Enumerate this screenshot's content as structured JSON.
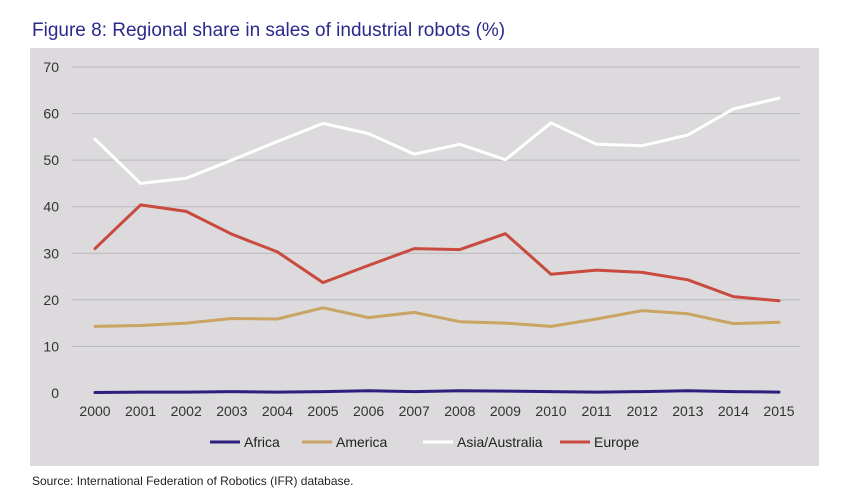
{
  "figure": {
    "title": "Figure 8: Regional share in sales of industrial robots (%)",
    "source": "Source: International Federation of Robotics (IFR) database."
  },
  "chart_data": {
    "type": "line",
    "title": "Figure 8: Regional share in sales of industrial robots (%)",
    "xlabel": "",
    "ylabel": "",
    "ylim": [
      0,
      70
    ],
    "yticks": [
      0,
      10,
      20,
      30,
      40,
      50,
      60,
      70
    ],
    "grid": true,
    "legend_position": "bottom",
    "categories": [
      "2000",
      "2001",
      "2002",
      "2003",
      "2004",
      "2005",
      "2006",
      "2007",
      "2008",
      "2009",
      "2010",
      "2011",
      "2012",
      "2013",
      "2014",
      "2015"
    ],
    "series": [
      {
        "name": "Africa",
        "color": "#2e1f7e",
        "values": [
          0.1,
          0.2,
          0.2,
          0.3,
          0.2,
          0.3,
          0.5,
          0.3,
          0.5,
          0.4,
          0.3,
          0.2,
          0.3,
          0.5,
          0.3,
          0.2
        ]
      },
      {
        "name": "America",
        "color": "#c9a462",
        "values": [
          14.3,
          14.5,
          15.0,
          16.0,
          15.9,
          18.3,
          16.2,
          17.3,
          15.3,
          15.0,
          14.3,
          15.9,
          17.7,
          17.0,
          14.9,
          15.2
        ]
      },
      {
        "name": "Asia/Australia",
        "color": "#ffffff",
        "values": [
          54.5,
          45.0,
          46.1,
          50.0,
          54.0,
          57.9,
          55.7,
          51.3,
          53.4,
          50.1,
          58.0,
          53.4,
          53.1,
          55.4,
          61.0,
          63.3
        ]
      },
      {
        "name": "Europe",
        "color": "#c94a3f",
        "values": [
          31.0,
          40.4,
          39.0,
          34.1,
          30.3,
          23.7,
          27.4,
          31.0,
          30.8,
          34.2,
          25.5,
          26.4,
          25.9,
          24.3,
          20.7,
          19.8
        ]
      }
    ]
  }
}
